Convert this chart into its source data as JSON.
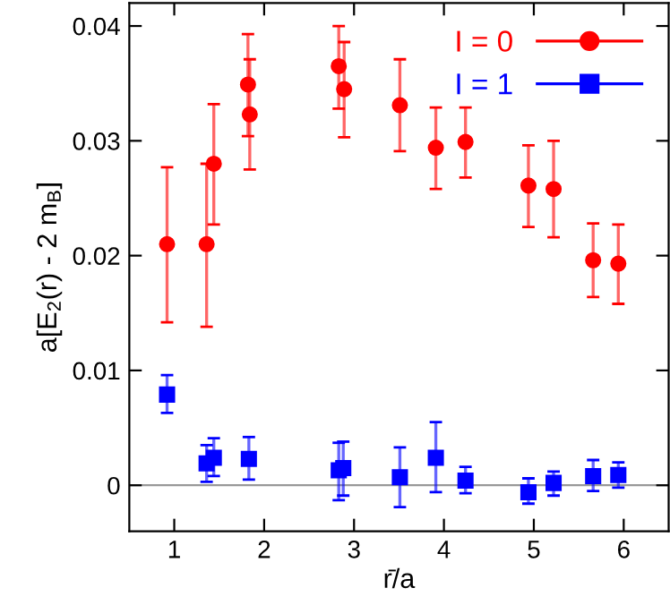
{
  "chart_data": {
    "type": "scatter",
    "xlabel": "r̄/a",
    "ylabel": "a[E$_{2}$(r) - 2 m$_{B}$]",
    "xlim": [
      0.5,
      6.5
    ],
    "xticks": [
      1,
      2,
      3,
      4,
      5,
      6
    ],
    "ylim": [
      -0.004,
      0.042
    ],
    "yticks": [
      0,
      0.01,
      0.02,
      0.03,
      0.04
    ],
    "grid": false,
    "legend": "top right",
    "ref_lines": [
      {
        "axis": "y",
        "value": 0,
        "color": "#999999",
        "line_style": "solid"
      }
    ],
    "series": [
      {
        "name": "I = 0",
        "color": "#ff0000",
        "marker": "circle",
        "x": [
          0.92,
          1.36,
          1.44,
          1.82,
          1.84,
          2.83,
          2.89,
          3.51,
          3.91,
          4.24,
          4.94,
          5.22,
          5.66,
          5.94
        ],
        "values": [
          0.021,
          0.021,
          0.028,
          0.0349,
          0.0323,
          0.0365,
          0.0345,
          0.0331,
          0.0294,
          0.0299,
          0.0261,
          0.0258,
          0.0196,
          0.0193
        ],
        "errors": [
          [
            0.0142,
            0.0277
          ],
          [
            0.0138,
            0.028
          ],
          [
            0.0227,
            0.0332
          ],
          [
            0.0304,
            0.0393
          ],
          [
            0.0275,
            0.0371
          ],
          [
            0.0328,
            0.04
          ],
          [
            0.0303,
            0.0386
          ],
          [
            0.0291,
            0.0371
          ],
          [
            0.0258,
            0.0329
          ],
          [
            0.0268,
            0.0329
          ],
          [
            0.0225,
            0.0296
          ],
          [
            0.0216,
            0.03
          ],
          [
            0.0164,
            0.0228
          ],
          [
            0.0158,
            0.0227
          ]
        ]
      },
      {
        "name": "I = 1",
        "color": "#0000ff",
        "marker": "square",
        "x": [
          0.92,
          1.36,
          1.44,
          1.83,
          2.83,
          2.88,
          3.51,
          3.91,
          4.24,
          4.94,
          5.22,
          5.66,
          5.94
        ],
        "values": [
          0.0079,
          0.0019,
          0.0024,
          0.0023,
          0.0013,
          0.0015,
          0.0007,
          0.0024,
          0.0004,
          -0.0006,
          0.0002,
          0.0008,
          0.0009
        ],
        "errors": [
          [
            0.0063,
            0.0096
          ],
          [
            0.0003,
            0.0035
          ],
          [
            0.0008,
            0.0041
          ],
          [
            0.0005,
            0.0042
          ],
          [
            -0.0013,
            0.0037
          ],
          [
            -0.0009,
            0.0038
          ],
          [
            -0.0019,
            0.0033
          ],
          [
            -0.0006,
            0.0055
          ],
          [
            -0.0007,
            0.0016
          ],
          [
            -0.0016,
            0.0006
          ],
          [
            -0.0009,
            0.0012
          ],
          [
            -0.0005,
            0.0022
          ],
          [
            -0.0002,
            0.002
          ]
        ]
      }
    ]
  }
}
